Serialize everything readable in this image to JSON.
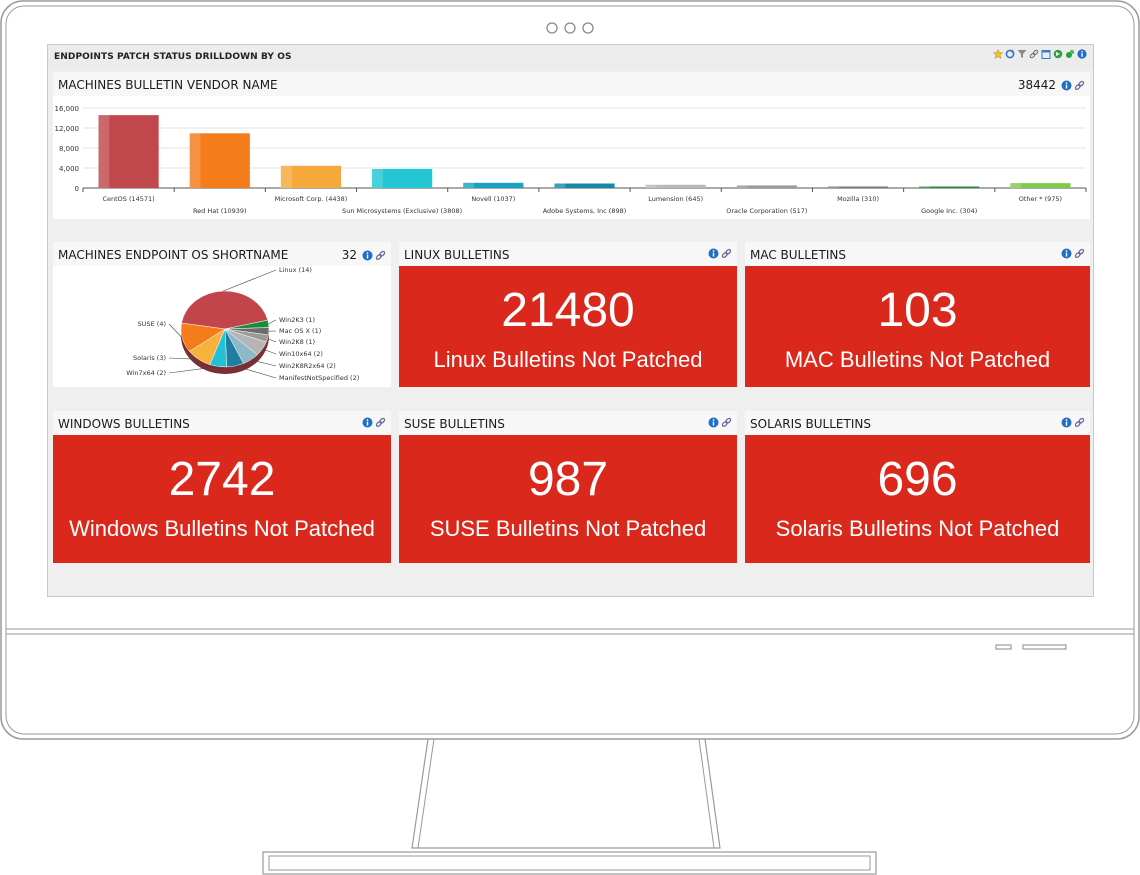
{
  "dashboard": {
    "title": "ENDPOINTS PATCH STATUS DRILLDOWN BY OS",
    "toolbar_icons": [
      "star-icon",
      "refresh-icon",
      "filter-icon",
      "link-icon",
      "calendar-icon",
      "export-icon",
      "tools-icon",
      "info-icon"
    ]
  },
  "vendor_panel": {
    "title": "MACHINES BULLETIN VENDOR NAME",
    "count": "38442",
    "chart_data": {
      "type": "bar",
      "categories": [
        "CentOS (14571)",
        "Red Hat (10939)",
        "Microsoft Corp. (4438)",
        "Sun Microsystems (Exclusive) (3808)",
        "Novell (1037)",
        "Adobe Systems, Inc (898)",
        "Lumension (645)",
        "Oracle Corporation (517)",
        "Mozilla (310)",
        "Google Inc. (304)",
        "Other * (975)"
      ],
      "values": [
        14571,
        10939,
        4438,
        3808,
        1037,
        898,
        645,
        517,
        310,
        304,
        975
      ],
      "colors": [
        "#c0474b",
        "#f47c1a",
        "#f6a93a",
        "#22c7d3",
        "#1aa3c0",
        "#1789a8",
        "#b9b9b9",
        "#9a9a9a",
        "#7d7d7d",
        "#2e8b3c",
        "#7ccc4a"
      ],
      "yticks": [
        "0",
        "4,000",
        "8,000",
        "12,000",
        "16,000"
      ],
      "ylim": [
        0,
        16000
      ],
      "grid": true
    }
  },
  "os_panel": {
    "title": "MACHINES ENDPOINT OS SHORTNAME",
    "count": "32",
    "chart_data": {
      "type": "pie",
      "labels": [
        "Linux (14)",
        "Win2K3 (1)",
        "Mac OS X (1)",
        "Win2K8 (1)",
        "Win10x64 (2)",
        "Win2K8R2x64 (2)",
        "ManifestNotSpecified (2)",
        "Win7x64 (2)",
        "Solaris (3)",
        "SUSE (4)"
      ],
      "values": [
        14,
        1,
        1,
        1,
        2,
        2,
        2,
        2,
        3,
        4
      ],
      "colors": [
        "#c2454c",
        "#1d8c3a",
        "#6d6d6d",
        "#9a9a9a",
        "#b5b5b5",
        "#8cb8c8",
        "#1e7fa0",
        "#21c1d6",
        "#f7b23c",
        "#f47c1a"
      ]
    }
  },
  "tiles": [
    {
      "title": "LINUX BULLETINS",
      "value": "21480",
      "label": "Linux Bulletins Not Patched"
    },
    {
      "title": "MAC BULLETINS",
      "value": "103",
      "label": "MAC Bulletins Not Patched"
    },
    {
      "title": "WINDOWS BULLETINS",
      "value": "2742",
      "label": "Windows Bulletins Not Patched"
    },
    {
      "title": "SUSE BULLETINS",
      "value": "987",
      "label": "SUSE Bulletins Not Patched"
    },
    {
      "title": "SOLARIS BULLETINS",
      "value": "696",
      "label": "Solaris Bulletins Not Patched"
    }
  ],
  "colors": {
    "tile_red": "#da291c",
    "info_blue": "#1f6fc4"
  }
}
